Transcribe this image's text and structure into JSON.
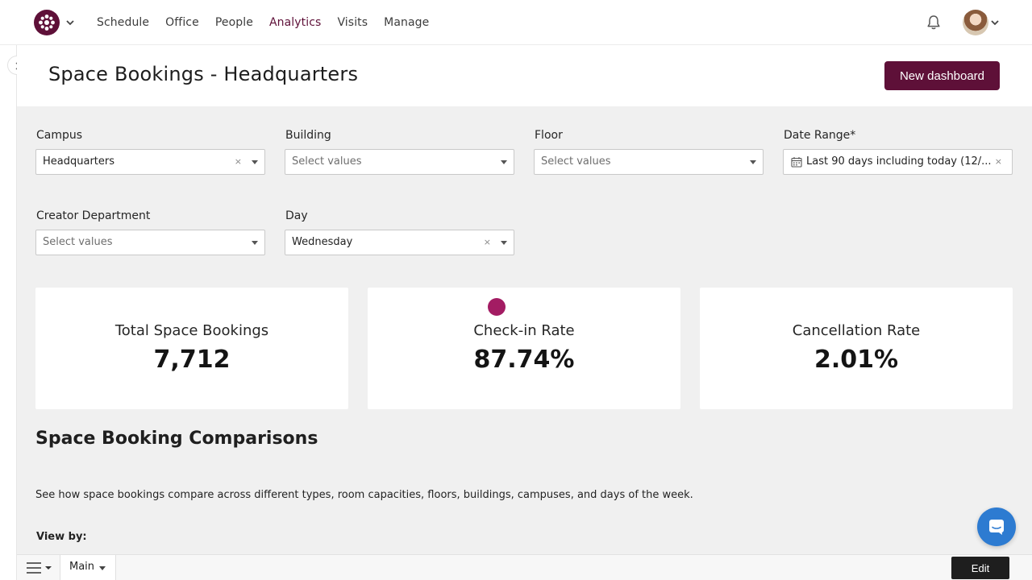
{
  "nav": {
    "items": [
      "Schedule",
      "Office",
      "People",
      "Analytics",
      "Visits",
      "Manage"
    ],
    "active": "Analytics"
  },
  "header": {
    "title": "Space Bookings - Headquarters",
    "new_dashboard_label": "New dashboard"
  },
  "filters": {
    "campus": {
      "label": "Campus",
      "value": "Headquarters",
      "clear": "×"
    },
    "building": {
      "label": "Building",
      "placeholder": "Select values"
    },
    "floor": {
      "label": "Floor",
      "placeholder": "Select values"
    },
    "date_range": {
      "label": "Date Range*",
      "value": "Last 90 days including today (12/...",
      "clear": "×"
    },
    "creator_department": {
      "label": "Creator Department",
      "placeholder": "Select values"
    },
    "day": {
      "label": "Day",
      "value": "Wednesday",
      "clear": "×"
    }
  },
  "kpis": [
    {
      "label": "Total Space Bookings",
      "value": "7,712"
    },
    {
      "label": "Check-in Rate",
      "value": "87.74%"
    },
    {
      "label": "Cancellation Rate",
      "value": "2.01%"
    }
  ],
  "section": {
    "title": "Space Booking Comparisons",
    "description": "See how space bookings compare across different types, room capacities, floors, buildings, campuses, and days of the week.",
    "view_by_label": "View by:"
  },
  "bottom": {
    "tab_label": "Main",
    "edit_label": "Edit"
  },
  "colors": {
    "brand": "#5e1038",
    "accent_dot": "#a31c63",
    "chat": "#2d7bd1"
  }
}
